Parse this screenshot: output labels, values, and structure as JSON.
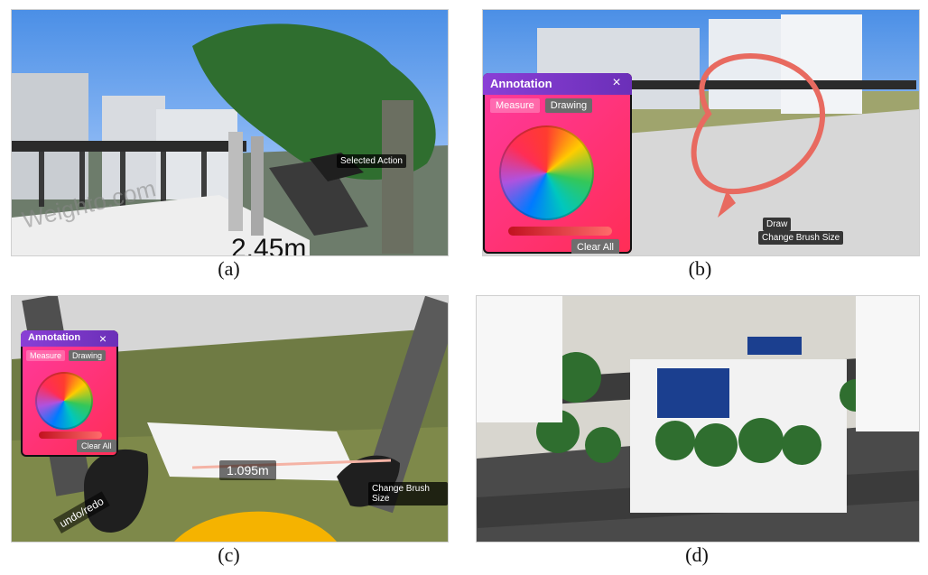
{
  "captions": {
    "a": "(a)",
    "b": "(b)",
    "c": "(c)",
    "d": "(d)"
  },
  "panel_a": {
    "measure": "2.45m",
    "bg_text": "Weighto.com",
    "tooltip": "Selected Action"
  },
  "panel_b": {
    "ui_title": "Annotation",
    "close_label": "×",
    "tabs": [
      "Measure",
      "Drawing"
    ],
    "clear_label": "Clear All",
    "tooltip_1": "Draw",
    "tooltip_2": "Change Brush Size"
  },
  "panel_c": {
    "ui_title": "Annotation",
    "close_label": "×",
    "tabs": [
      "Measure",
      "Drawing"
    ],
    "clear_label": "Clear All",
    "measure": "1.095m",
    "tooltip": "Change Brush Size",
    "hint": "undo/redo"
  }
}
